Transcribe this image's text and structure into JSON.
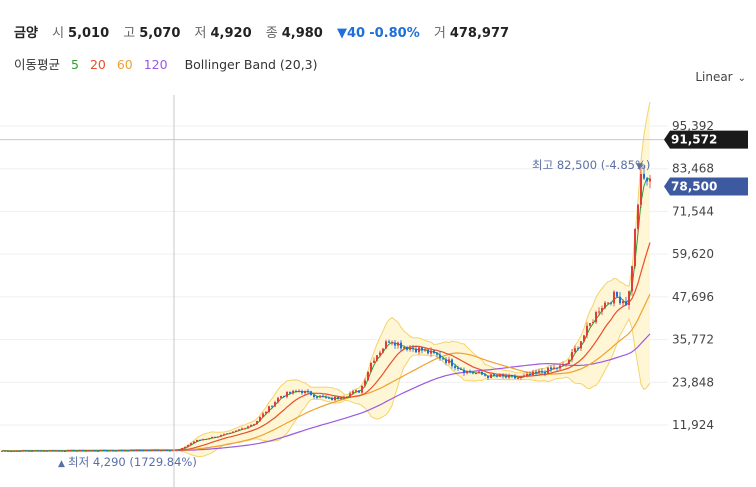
{
  "header": {
    "name": "금양",
    "open_label": "시",
    "open": "5,010",
    "high_label": "고",
    "high": "5,070",
    "low_label": "저",
    "low": "4,920",
    "close_label": "종",
    "close": "4,980",
    "change": "▼40",
    "change_pct": "-0.80%",
    "volume_label": "거",
    "volume": "478,977"
  },
  "indicators": {
    "ma_label": "이동평균",
    "ma_periods": [
      "5",
      "20",
      "60",
      "120"
    ],
    "ma_colors": [
      "#2e9e2e",
      "#e8502a",
      "#f0a030",
      "#9b59e0"
    ],
    "bollinger_label": "Bollinger Band (20,3)"
  },
  "scale_toggle": "Linear",
  "chart_data": {
    "type": "candlestick",
    "scale": "linear",
    "y_ticks": [
      "95,392",
      "83,468",
      "71,544",
      "59,620",
      "47,696",
      "35,772",
      "23,848",
      "11,924"
    ],
    "ylim": [
      4000,
      100000
    ],
    "crosshair_label": "91,572",
    "crosshair_value": 91572,
    "last_price_label": "78,500",
    "last_price": 78500,
    "high_annotation": "최고 82,500 (-4.85%)",
    "low_annotation": "최저 4,290 (1729.84%)",
    "colors": {
      "up": "#e03c3c",
      "down": "#1e6fd9",
      "band_fill": "#fff6d6",
      "band_line": "#f5d36b"
    }
  }
}
